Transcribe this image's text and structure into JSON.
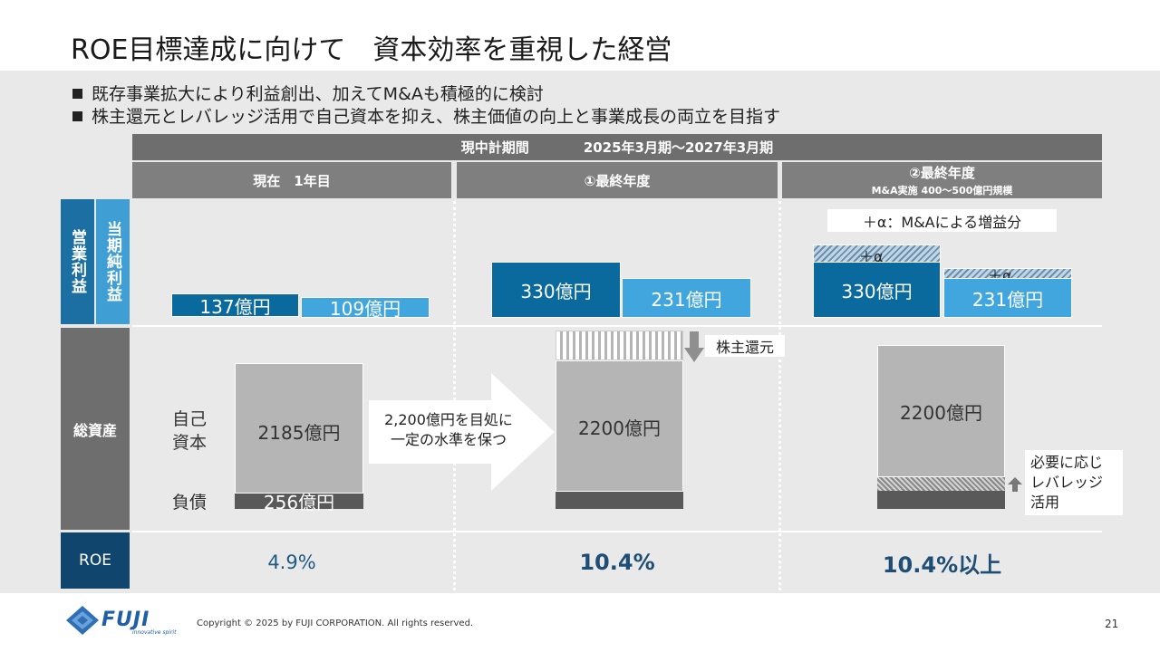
{
  "slide": {
    "title": "ROE目標達成に向けて　資本効率を重視した経営",
    "bullets": [
      "既存事業拡大により利益創出、加えてM&Aも積極的に検討",
      "株主還元とレバレッジ活用で自己資本を抑え、株主価値の向上と事業成長の両立を目指す"
    ]
  },
  "table_header": {
    "period_label": "現中計期間",
    "period_range": "2025年3月期～2027年3月期",
    "col1": "現在　1年目",
    "col2": "①最終年度",
    "col3": "②最終年度",
    "col3_sub": "M&A実施 400～500億円規模"
  },
  "row_labels": {
    "operating_profit": "営業利益",
    "net_profit": "当期純利益",
    "total_assets": "総資産",
    "roe": "ROE"
  },
  "profit": {
    "col1_operating": "137億円",
    "col1_net": "109億円",
    "col2_operating": "330億円",
    "col2_net": "231億円",
    "col3_operating": "330億円",
    "col3_net": "231億円",
    "alpha_note": "＋α：M&Aによる増益分",
    "alpha_label_1": "＋α",
    "alpha_label_2": "＋α"
  },
  "assets": {
    "equity_label_1": "自己",
    "equity_label_2": "資本",
    "debt_label": "負債",
    "col1_equity": "2185億円",
    "col1_debt": "256億円",
    "arrow_text_1": "2,200億円を目処に",
    "arrow_text_2": "一定の水準を保つ",
    "col2_equity": "2200億円",
    "shareholder_return": "株主還元",
    "col3_equity": "2200億円",
    "leverage_1": "必要に応じ",
    "leverage_2": "レバレッジ",
    "leverage_3": "活用"
  },
  "roe": {
    "col1": "4.9%",
    "col2": "10.4%",
    "col3": "10.4%以上"
  },
  "footer": {
    "logo_text": "FUJI",
    "logo_tagline": "innovative spirit",
    "copyright": "Copyright © 2025 by FUJI CORPORATION. All rights reserved.",
    "page_number": "21"
  },
  "colors": {
    "dark_blue": "#0a6a9e",
    "light_blue": "#41a6dd",
    "navy": "#10466e",
    "gray_header": "#6e6e6e"
  }
}
